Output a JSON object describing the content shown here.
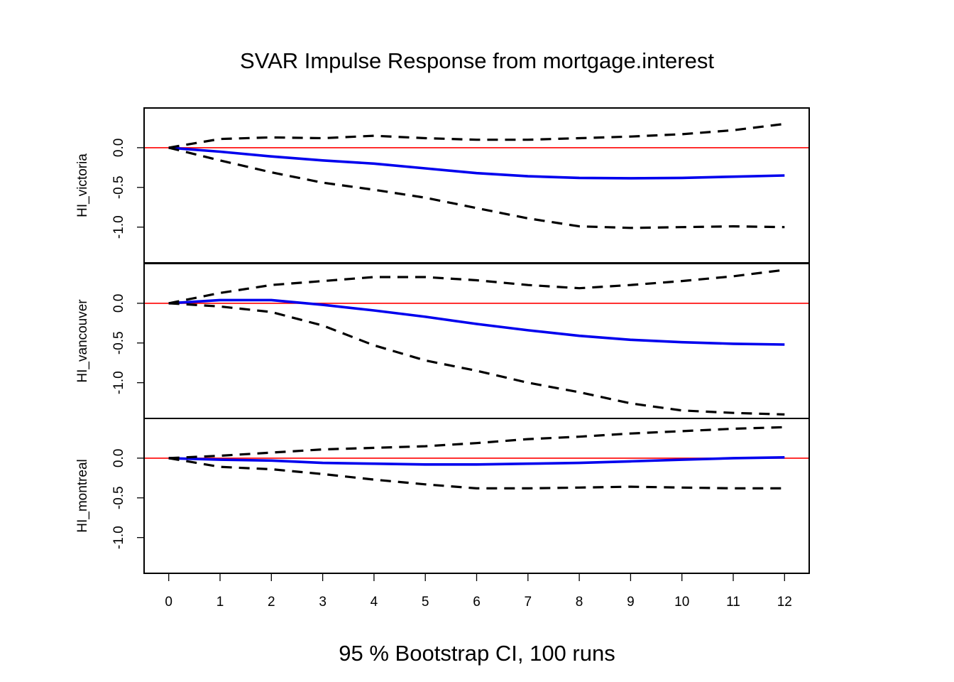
{
  "chart_data": {
    "type": "line",
    "title": "SVAR Impulse Response from mortgage.interest",
    "xlabel": "95 % Bootstrap CI,  100 runs",
    "x": [
      0,
      1,
      2,
      3,
      4,
      5,
      6,
      7,
      8,
      9,
      10,
      11,
      12
    ],
    "x_tick_labels": [
      "0",
      "1",
      "2",
      "3",
      "4",
      "5",
      "6",
      "7",
      "8",
      "9",
      "10",
      "11",
      "12"
    ],
    "xlim": [
      -0.48,
      12.48
    ],
    "ylim": [
      -1.45,
      0.5
    ],
    "y_ticks": [
      0.0,
      -0.5,
      -1.0
    ],
    "y_tick_labels": [
      "0.0",
      "-0.5",
      "-1.0"
    ],
    "grid": false,
    "reference_line": {
      "y": 0,
      "color": "#ff0000"
    },
    "colors": {
      "irf": "#0000ee",
      "ci": "#000000",
      "zero": "#ff0000"
    },
    "panels": [
      {
        "ylabel": "HI_victoria",
        "series": [
          {
            "role": "irf",
            "values": [
              0,
              -0.05,
              -0.11,
              -0.16,
              -0.2,
              -0.26,
              -0.32,
              -0.36,
              -0.38,
              -0.385,
              -0.38,
              -0.365,
              -0.35
            ]
          },
          {
            "role": "upper",
            "values": [
              0,
              0.11,
              0.13,
              0.12,
              0.15,
              0.12,
              0.1,
              0.1,
              0.12,
              0.14,
              0.17,
              0.22,
              0.3
            ]
          },
          {
            "role": "lower",
            "values": [
              0,
              -0.16,
              -0.31,
              -0.44,
              -0.53,
              -0.63,
              -0.76,
              -0.89,
              -0.99,
              -1.01,
              -1.0,
              -0.99,
              -1.0
            ]
          }
        ]
      },
      {
        "ylabel": "HI_vancouver",
        "series": [
          {
            "role": "irf",
            "values": [
              0,
              0.04,
              0.04,
              -0.02,
              -0.09,
              -0.17,
              -0.26,
              -0.34,
              -0.41,
              -0.46,
              -0.49,
              -0.51,
              -0.52
            ]
          },
          {
            "role": "upper",
            "values": [
              0,
              0.13,
              0.23,
              0.28,
              0.33,
              0.33,
              0.29,
              0.23,
              0.19,
              0.23,
              0.28,
              0.34,
              0.42
            ]
          },
          {
            "role": "lower",
            "values": [
              0,
              -0.04,
              -0.11,
              -0.28,
              -0.53,
              -0.72,
              -0.85,
              -1.0,
              -1.12,
              -1.26,
              -1.35,
              -1.38,
              -1.4
            ]
          }
        ]
      },
      {
        "ylabel": "HI_montreal",
        "series": [
          {
            "role": "irf",
            "values": [
              0,
              -0.02,
              -0.03,
              -0.06,
              -0.07,
              -0.08,
              -0.08,
              -0.07,
              -0.06,
              -0.04,
              -0.02,
              0.0,
              0.01
            ]
          },
          {
            "role": "upper",
            "values": [
              0,
              0.03,
              0.07,
              0.11,
              0.13,
              0.15,
              0.19,
              0.24,
              0.27,
              0.31,
              0.34,
              0.37,
              0.39
            ]
          },
          {
            "role": "lower",
            "values": [
              0,
              -0.11,
              -0.14,
              -0.2,
              -0.27,
              -0.33,
              -0.38,
              -0.38,
              -0.37,
              -0.36,
              -0.37,
              -0.38,
              -0.38
            ]
          }
        ]
      }
    ]
  }
}
